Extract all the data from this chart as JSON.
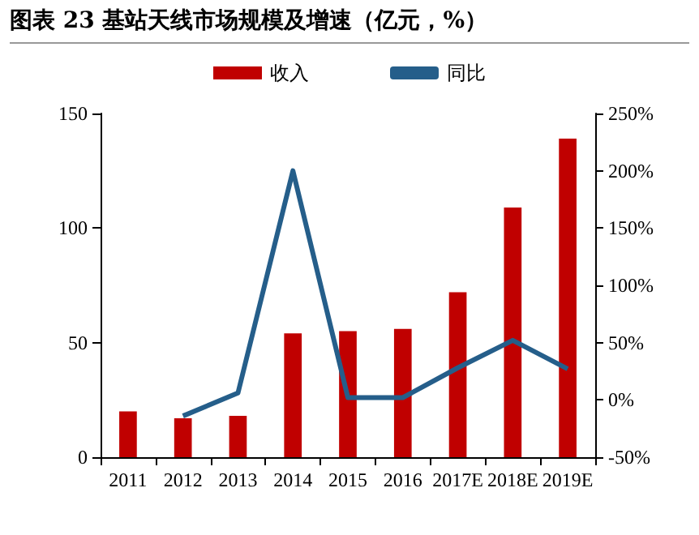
{
  "chart_data": {
    "type": "bar",
    "title": "图表 23  基站天线市场规模及增速（亿元，%）",
    "categories": [
      "2011",
      "2012",
      "2013",
      "2014",
      "2015",
      "2016",
      "2017E",
      "2018E",
      "2019E"
    ],
    "series": [
      {
        "name": "收入",
        "color": "#c00000",
        "values": [
          20,
          17,
          18,
          54,
          55,
          56,
          72,
          109,
          139
        ]
      },
      {
        "name": "同比",
        "type": "line",
        "axis": "y2",
        "color": "#255e8a",
        "marker": "none",
        "values": [
          null,
          -14,
          6,
          200,
          2,
          2,
          28,
          52,
          27
        ]
      }
    ],
    "ylim": [
      0,
      150
    ],
    "yticks": [
      0,
      50,
      100,
      150
    ],
    "y2lim": [
      -50,
      250
    ],
    "y2ticks": [
      {
        "value": -50,
        "label": "-50%"
      },
      {
        "value": 0,
        "label": "0%"
      },
      {
        "value": 50,
        "label": "50%"
      },
      {
        "value": 100,
        "label": "100%"
      },
      {
        "value": 150,
        "label": "150%"
      },
      {
        "value": 200,
        "label": "200%"
      },
      {
        "value": 250,
        "label": "250%"
      }
    ],
    "grid": false,
    "legend": "top"
  }
}
